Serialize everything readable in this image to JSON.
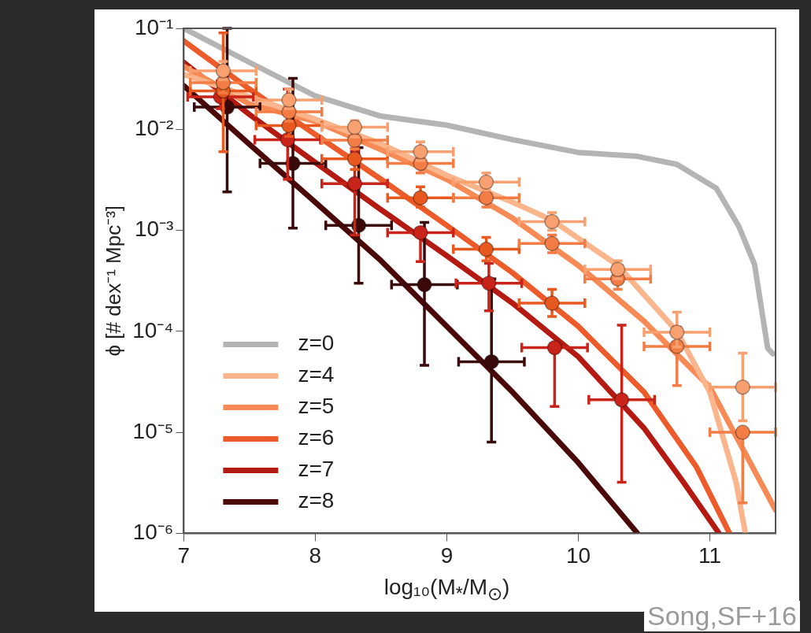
{
  "chart_data": {
    "type": "line",
    "xlabel": "log₁₀(M$_{*}$/M$_{⊙}$)",
    "ylabel": "ϕ [# dex⁻¹ Mpc⁻³]",
    "log": "y",
    "grid": false,
    "legend": "bottom left",
    "xlim": [
      7,
      11.5
    ],
    "ylim": [
      1e-06,
      0.1
    ],
    "xticks": [
      7,
      8,
      9,
      10,
      11
    ],
    "yticks": [
      {
        "value": 1e-06,
        "label": "10⁻⁶"
      },
      {
        "value": 1e-05,
        "label": "10⁻⁵"
      },
      {
        "value": 0.0001,
        "label": "10⁻⁴"
      },
      {
        "value": 0.001,
        "label": "10⁻³"
      },
      {
        "value": 0.01,
        "label": "10⁻²"
      },
      {
        "value": 0.1,
        "label": "10⁻¹"
      }
    ],
    "annotations": [
      "Song,SF+16"
    ],
    "series": [
      {
        "name": "z=0",
        "color": "#b4b4b4",
        "type": "line",
        "marker": "none",
        "x": [
          7,
          7.5,
          8,
          8.5,
          9,
          9.5,
          10,
          10.45,
          10.75,
          11.05,
          11.22,
          11.34,
          11.44,
          11.48
        ],
        "values": [
          0.1,
          0.046,
          0.0214,
          0.0135,
          0.011,
          0.0079,
          0.0059,
          0.0054,
          0.0045,
          0.0026,
          0.0011,
          0.00046,
          6.8e-05,
          6e-05
        ]
      },
      {
        "name": "z=4",
        "color": "#fbb58c",
        "type": "line",
        "marker": "none",
        "x": [
          7,
          7.5,
          8,
          8.5,
          9,
          9.5,
          9.8,
          10.3,
          10.75,
          11,
          11.2,
          11.27
        ],
        "values": [
          0.035,
          0.021,
          0.0126,
          0.0072,
          0.0035,
          0.0019,
          0.00126,
          0.00045,
          0.0001,
          2.5e-05,
          3.2e-06,
          1e-06
        ]
      },
      {
        "name": "z=5",
        "color": "#f78a55",
        "type": "line",
        "marker": "none",
        "x": [
          7,
          7.5,
          8,
          8.5,
          9,
          9.5,
          10,
          10.5,
          11,
          11.5
        ],
        "values": [
          0.042,
          0.0178,
          0.012,
          0.0063,
          0.0032,
          0.00132,
          0.00045,
          0.000126,
          2.8e-05,
          1.7e-06
        ]
      },
      {
        "name": "z=6",
        "color": "#ee5b2b",
        "type": "line",
        "marker": "none",
        "x": [
          7,
          7.5,
          8,
          8.5,
          9,
          9.5,
          10,
          10.5,
          10.9,
          11.15
        ],
        "values": [
          0.075,
          0.025,
          0.0089,
          0.0032,
          0.00112,
          0.00038,
          0.000112,
          2.5e-05,
          4.5e-06,
          1e-06
        ]
      },
      {
        "name": "z=7",
        "color": "#b51a12",
        "type": "line",
        "marker": "none",
        "x": [
          7,
          7.5,
          8,
          8.5,
          9,
          9.5,
          10,
          10.5,
          10.8,
          11.07
        ],
        "values": [
          0.046,
          0.014,
          0.0047,
          0.0016,
          0.00056,
          0.00019,
          5.6e-05,
          1.1e-05,
          3.2e-06,
          1e-06
        ]
      },
      {
        "name": "z=8",
        "color": "#4a0808",
        "type": "line",
        "marker": "none",
        "x": [
          7,
          7.5,
          8,
          8.5,
          9,
          9.5,
          10,
          10.45
        ],
        "values": [
          0.027,
          0.0071,
          0.0019,
          0.0005,
          0.000112,
          2.5e-05,
          5e-06,
          1e-06
        ]
      },
      {
        "color": "#f9a070",
        "type": "scatter",
        "marker": "circle",
        "x": [
          7.3,
          7.8,
          8.3,
          8.8,
          9.3,
          9.8,
          10.3,
          10.75,
          11.25
        ],
        "values": [
          0.038,
          0.0195,
          0.0105,
          0.006,
          0.003,
          0.00122,
          0.00041,
          9.8e-05,
          2.8e-05
        ],
        "errors": [
          [
            0.031,
            0.047
          ],
          [
            0.016,
            0.025
          ],
          [
            0.0084,
            0.0122
          ],
          [
            0.0049,
            0.0075
          ],
          [
            0.0025,
            0.0037
          ],
          [
            0.001,
            0.0015
          ],
          [
            0.00033,
            0.0005
          ],
          [
            7e-05,
            0.000155
          ],
          [
            1.3e-05,
            6.1e-05
          ]
        ],
        "xerrors": [
          0.25,
          0.25,
          0.25,
          0.25,
          0.25,
          0.25,
          0.25,
          0.25,
          0.25
        ]
      },
      {
        "color": "#f47d45",
        "type": "scatter",
        "marker": "circle",
        "x": [
          7.3,
          7.8,
          8.3,
          8.8,
          9.3,
          9.8,
          10.3,
          10.75,
          11.25
        ],
        "values": [
          0.029,
          0.0149,
          0.0078,
          0.0046,
          0.0021,
          0.00074,
          0.00033,
          7.1e-05,
          1e-05
        ],
        "errors": [
          [
            0.023,
            0.029
          ],
          [
            0.012,
            0.0149
          ],
          [
            0.0064,
            0.0078
          ],
          [
            0.0037,
            0.0046
          ],
          [
            0.0017,
            0.0027
          ],
          [
            0.0006,
            0.0009
          ],
          [
            0.00026,
            0.00033
          ],
          [
            2.9e-05,
            0.00011
          ],
          [
            2e-06,
            1e-05
          ]
        ],
        "xerrors": [
          0.25,
          0.25,
          0.25,
          0.25,
          0.25,
          0.25,
          0.25,
          0.25,
          0.25
        ]
      },
      {
        "color": "#e8591f",
        "type": "scatter",
        "marker": "circle",
        "x": [
          7.3,
          7.8,
          8.3,
          8.8,
          9.3,
          9.8
        ],
        "values": [
          0.024,
          0.0109,
          0.0051,
          0.0021,
          0.00065,
          0.00019
        ],
        "errors": [
          [
            0.006,
            0.09
          ],
          [
            0.0085,
            0.0109
          ],
          [
            0.004,
            0.0065
          ],
          [
            0.0017,
            0.0027
          ],
          [
            0.0005,
            0.00085
          ],
          [
            0.00014,
            0.00026
          ]
        ],
        "xerrors": [
          0.25,
          0.25,
          0.25,
          0.25,
          0.25,
          0.25
        ]
      },
      {
        "color": "#c8241a",
        "type": "scatter",
        "marker": "circle",
        "x": [
          7.28,
          7.79,
          8.3,
          8.8,
          9.32,
          9.82,
          10.33
        ],
        "values": [
          0.021,
          0.0079,
          0.0029,
          0.00095,
          0.0003,
          6.9e-05,
          2.1e-05
        ],
        "errors": [
          [
            0.016,
            0.03
          ],
          [
            0.0032,
            0.025
          ],
          [
            0.0009,
            0.006
          ],
          [
            0.00049,
            0.00095
          ],
          [
            0.00016,
            0.00047
          ],
          [
            1.8e-05,
            6.9e-05
          ],
          [
            3.2e-06,
            0.000115
          ]
        ],
        "xerrors": [
          0.25,
          0.25,
          0.25,
          0.25,
          0.25,
          0.25,
          0.25
        ]
      },
      {
        "color": "#3a0a0a",
        "type": "scatter",
        "marker": "circle",
        "x": [
          7.33,
          7.83,
          8.33,
          8.83,
          9.34
        ],
        "values": [
          0.0166,
          0.0046,
          0.00112,
          0.00029,
          5e-05
        ],
        "errors": [
          [
            0.0024,
            0.1
          ],
          [
            0.00105,
            0.032
          ],
          [
            0.0003,
            0.0066
          ],
          [
            4.6e-05,
            0.0012
          ],
          [
            8e-06,
            0.00033
          ]
        ],
        "xerrors": [
          0.25,
          0.25,
          0.25,
          0.25,
          0.25
        ]
      }
    ]
  }
}
